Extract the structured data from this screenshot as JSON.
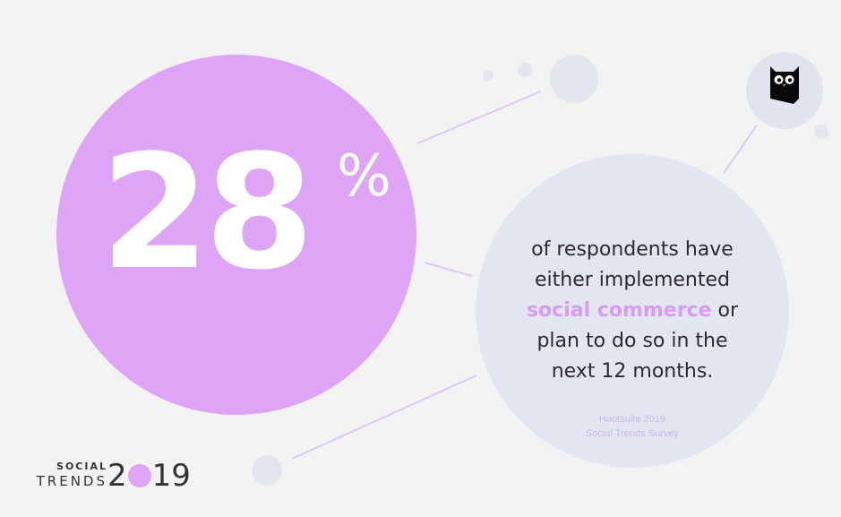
{
  "stat": {
    "number": "28",
    "suffix": "%"
  },
  "info": {
    "line1": "of respondents have",
    "line2": "either implemented",
    "highlight": "social commerce",
    "line3_rest": " or",
    "line4": "plan to do so in the",
    "line5": "next 12 months."
  },
  "source": {
    "line1": "Hootsuite 2019",
    "line2": "Social Trends Survey"
  },
  "logo": {
    "social": "SOCIAL",
    "trends": "TRENDS",
    "year_start": "2",
    "year_end": "19"
  },
  "colors": {
    "accent_purple": "#dea4f5",
    "highlight_text": "#d79cf2",
    "bubble_blue": "#e1e6f1",
    "background": "#f3f3f3"
  },
  "icons": {
    "brand_mark": "owl-logo-icon"
  }
}
